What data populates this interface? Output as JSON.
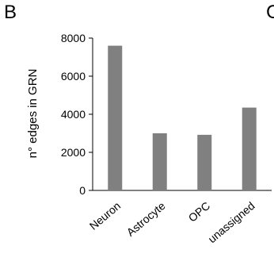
{
  "panel_label": "B",
  "next_panel_label": "C",
  "chart_data": {
    "type": "bar",
    "categories": [
      "Neuron",
      "Astrocyte",
      "OPC",
      "unassigned"
    ],
    "values": [
      7600,
      3000,
      2920,
      4350
    ],
    "title": "",
    "xlabel": "",
    "ylabel": "n° edges in GRN",
    "ylim": [
      0,
      8000
    ],
    "yticks": [
      "0",
      "2000",
      "4000",
      "6000",
      "8000"
    ],
    "ytick_values": [
      0,
      2000,
      4000,
      6000,
      8000
    ],
    "bar_color": "#808080",
    "grid": false
  }
}
